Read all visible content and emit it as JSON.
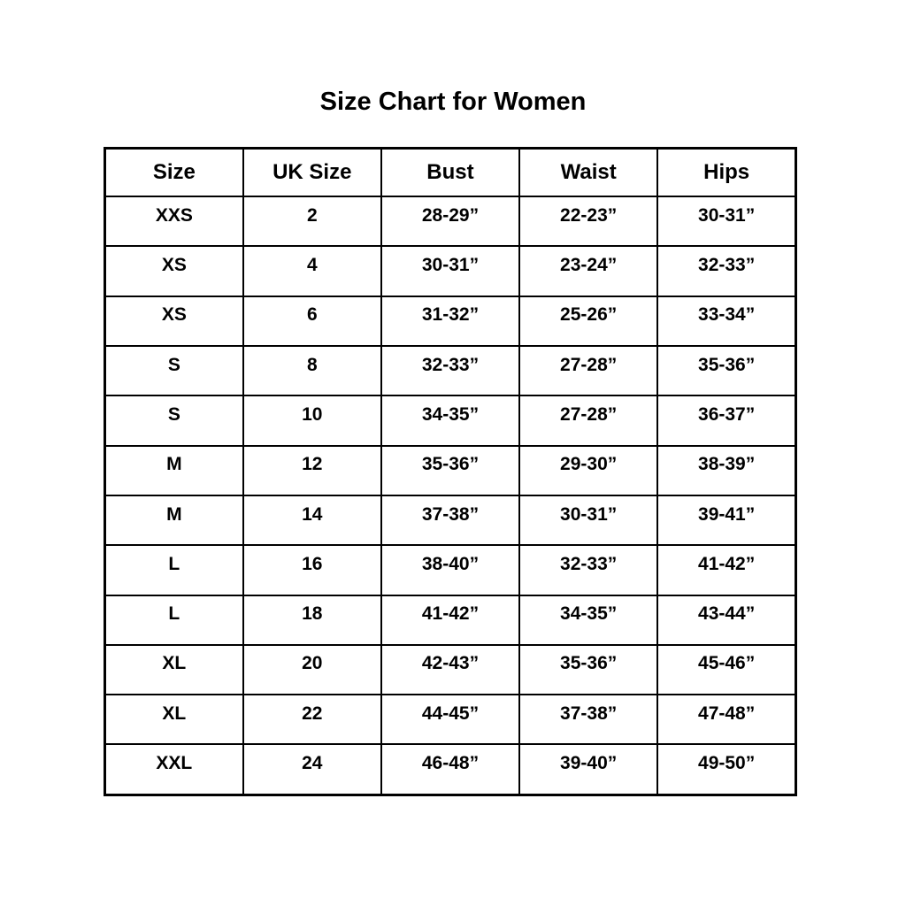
{
  "title": "Size Chart for Women",
  "colors": {
    "background": "#ffffff",
    "text": "#000000",
    "border": "#000000"
  },
  "table": {
    "headers": [
      "Size",
      "UK Size",
      "Bust",
      "Waist",
      "Hips"
    ],
    "rows": [
      [
        "XXS",
        "2",
        "28-29”",
        "22-23”",
        "30-31”"
      ],
      [
        "XS",
        "4",
        "30-31”",
        "23-24”",
        "32-33”"
      ],
      [
        "XS",
        "6",
        "31-32”",
        "25-26”",
        "33-34”"
      ],
      [
        "S",
        "8",
        "32-33”",
        "27-28”",
        "35-36”"
      ],
      [
        "S",
        "10",
        "34-35”",
        "27-28”",
        "36-37”"
      ],
      [
        "M",
        "12",
        "35-36”",
        "29-30”",
        "38-39”"
      ],
      [
        "M",
        "14",
        "37-38”",
        "30-31”",
        "39-41”"
      ],
      [
        "L",
        "16",
        "38-40”",
        "32-33”",
        "41-42”"
      ],
      [
        "L",
        "18",
        "41-42”",
        "34-35”",
        "43-44”"
      ],
      [
        "XL",
        "20",
        "42-43”",
        "35-36”",
        "45-46”"
      ],
      [
        "XL",
        "22",
        "44-45”",
        "37-38”",
        "47-48”"
      ],
      [
        "XXL",
        "24",
        "46-48”",
        "39-40”",
        "49-50”"
      ]
    ]
  }
}
